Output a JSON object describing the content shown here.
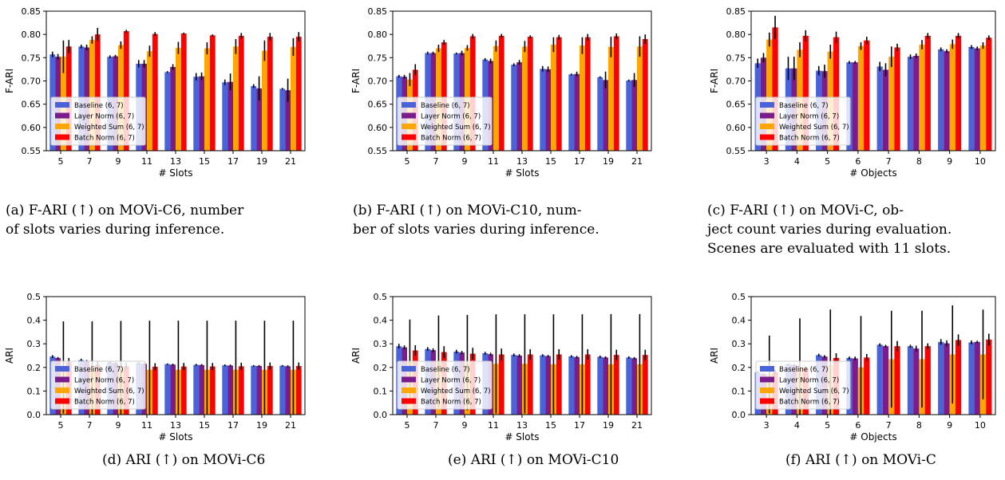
{
  "legend_entries": [
    "Baseline (6, 7)",
    "Layer Norm (6, 7)",
    "Weighted Sum (6, 7)",
    "Batch Norm (6, 7)"
  ],
  "colors": {
    "baseline": "#4a63d9",
    "layer_norm": "#7a1c8c",
    "weighted_sum": "#ffa500",
    "batch_norm": "#ff0000",
    "error": "#000000"
  },
  "chart_data": [
    {
      "type": "bar",
      "caption": [
        "(a) F-ARI (↑) on MOVi-C6, number",
        "of slots varies during inference."
      ],
      "xlabel": "# Slots",
      "ylabel": "F-ARI",
      "ylim": [
        0.55,
        0.85
      ],
      "yticks": [
        0.55,
        0.6,
        0.65,
        0.7,
        0.75,
        0.8,
        0.85
      ],
      "ytick_decimals": 2,
      "categories": [
        "5",
        "7",
        "9",
        "11",
        "13",
        "15",
        "17",
        "19",
        "21"
      ],
      "legend": "lower-left",
      "series": [
        {
          "name": "Baseline (6, 7)",
          "values": [
            0.757,
            0.774,
            0.752,
            0.737,
            0.719,
            0.709,
            0.697,
            0.689,
            0.683
          ],
          "err": [
            0.006,
            0.004,
            0.003,
            0.008,
            0.002,
            0.008,
            0.006,
            0.004,
            0.002
          ]
        },
        {
          "name": "Layer Norm (6, 7)",
          "values": [
            0.752,
            0.772,
            0.753,
            0.737,
            0.73,
            0.71,
            0.698,
            0.684,
            0.68
          ],
          "err": [
            0.006,
            0.006,
            0.003,
            0.008,
            0.006,
            0.008,
            0.018,
            0.026,
            0.025
          ]
        },
        {
          "name": "Weighted Sum (6, 7)",
          "values": [
            0.752,
            0.788,
            0.777,
            0.764,
            0.771,
            0.77,
            0.774,
            0.765,
            0.773
          ],
          "err": [
            0.035,
            0.008,
            0.008,
            0.012,
            0.013,
            0.013,
            0.016,
            0.022,
            0.019
          ]
        },
        {
          "name": "Batch Norm (6, 7)",
          "values": [
            0.774,
            0.8,
            0.807,
            0.801,
            0.802,
            0.798,
            0.797,
            0.795,
            0.795
          ],
          "err": [
            0.014,
            0.014,
            0.003,
            0.004,
            0.002,
            0.002,
            0.006,
            0.008,
            0.01
          ]
        }
      ]
    },
    {
      "type": "bar",
      "caption": [
        "(b) F-ARI (↑) on MOVi-C10, num-",
        "ber of slots varies during inference."
      ],
      "xlabel": "# Slots",
      "ylabel": "F-ARI",
      "ylim": [
        0.55,
        0.85
      ],
      "yticks": [
        0.55,
        0.6,
        0.65,
        0.7,
        0.75,
        0.8,
        0.85
      ],
      "ytick_decimals": 2,
      "categories": [
        "5",
        "7",
        "9",
        "11",
        "13",
        "15",
        "17",
        "19",
        "21"
      ],
      "legend": "lower-left",
      "series": [
        {
          "name": "Baseline (6, 7)",
          "values": [
            0.71,
            0.76,
            0.759,
            0.746,
            0.735,
            0.726,
            0.714,
            0.708,
            0.701
          ],
          "err": [
            0.003,
            0.003,
            0.002,
            0.003,
            0.003,
            0.006,
            0.002,
            0.002,
            0.002
          ]
        },
        {
          "name": "Layer Norm (6, 7)",
          "values": [
            0.709,
            0.76,
            0.76,
            0.743,
            0.74,
            0.725,
            0.715,
            0.702,
            0.702
          ],
          "err": [
            0.004,
            0.003,
            0.005,
            0.005,
            0.005,
            0.006,
            0.005,
            0.018,
            0.015
          ]
        },
        {
          "name": "Weighted Sum (6, 7)",
          "values": [
            0.703,
            0.77,
            0.771,
            0.775,
            0.774,
            0.778,
            0.776,
            0.773,
            0.774
          ],
          "err": [
            0.014,
            0.008,
            0.006,
            0.012,
            0.012,
            0.016,
            0.018,
            0.022,
            0.022
          ]
        },
        {
          "name": "Batch Norm (6, 7)",
          "values": [
            0.724,
            0.783,
            0.796,
            0.797,
            0.795,
            0.794,
            0.794,
            0.796,
            0.79
          ],
          "err": [
            0.012,
            0.005,
            0.005,
            0.004,
            0.003,
            0.005,
            0.007,
            0.006,
            0.01
          ]
        }
      ]
    },
    {
      "type": "bar",
      "caption": [
        "(c)  F-ARI  (↑)  on  MOVi-C,  ob-",
        "ject count varies during evaluation.",
        "Scenes are evaluated with 11 slots."
      ],
      "xlabel": "# Objects",
      "ylabel": "F-ARI",
      "ylim": [
        0.55,
        0.85
      ],
      "yticks": [
        0.55,
        0.6,
        0.65,
        0.7,
        0.75,
        0.8,
        0.85
      ],
      "ytick_decimals": 2,
      "categories": [
        "3",
        "4",
        "5",
        "6",
        "7",
        "8",
        "9",
        "10"
      ],
      "legend": "lower-left",
      "series": [
        {
          "name": "Baseline (6, 7)",
          "values": [
            0.738,
            0.727,
            0.722,
            0.74,
            0.731,
            0.752,
            0.768,
            0.773
          ],
          "err": [
            0.01,
            0.025,
            0.01,
            0.003,
            0.01,
            0.005,
            0.004,
            0.004
          ]
        },
        {
          "name": "Layer Norm (6, 7)",
          "values": [
            0.75,
            0.727,
            0.721,
            0.74,
            0.724,
            0.754,
            0.764,
            0.77
          ],
          "err": [
            0.01,
            0.025,
            0.014,
            0.003,
            0.014,
            0.005,
            0.004,
            0.004
          ]
        },
        {
          "name": "Weighted Sum (6, 7)",
          "values": [
            0.789,
            0.767,
            0.763,
            0.775,
            0.752,
            0.778,
            0.779,
            0.776
          ],
          "err": [
            0.015,
            0.016,
            0.015,
            0.008,
            0.022,
            0.01,
            0.01,
            0.007
          ]
        },
        {
          "name": "Batch Norm (6, 7)",
          "values": [
            0.815,
            0.797,
            0.794,
            0.787,
            0.772,
            0.797,
            0.797,
            0.793
          ],
          "err": [
            0.025,
            0.012,
            0.012,
            0.008,
            0.008,
            0.006,
            0.006,
            0.005
          ]
        }
      ]
    },
    {
      "type": "bar",
      "caption": [
        "(d) ARI (↑) on MOVi-C6"
      ],
      "xlabel": "# Slots",
      "ylabel": "ARI",
      "ylim": [
        0.0,
        0.5
      ],
      "yticks": [
        0.0,
        0.1,
        0.2,
        0.3,
        0.4,
        0.5
      ],
      "ytick_decimals": 1,
      "categories": [
        "5",
        "7",
        "9",
        "11",
        "13",
        "15",
        "17",
        "19",
        "21"
      ],
      "legend": "lower-left",
      "series": [
        {
          "name": "Baseline (6, 7)",
          "values": [
            0.246,
            0.231,
            0.222,
            0.218,
            0.214,
            0.211,
            0.209,
            0.207,
            0.207
          ],
          "err": [
            0.006,
            0.006,
            0.005,
            0.005,
            0.003,
            0.004,
            0.004,
            0.003,
            0.003
          ]
        },
        {
          "name": "Layer Norm (6, 7)",
          "values": [
            0.24,
            0.227,
            0.218,
            0.215,
            0.212,
            0.21,
            0.208,
            0.206,
            0.205
          ],
          "err": [
            0.004,
            0.004,
            0.004,
            0.004,
            0.004,
            0.004,
            0.004,
            0.004,
            0.004
          ]
        },
        {
          "name": "Weighted Sum (6, 7)",
          "values": [
            0.2,
            0.195,
            0.192,
            0.19,
            0.19,
            0.19,
            0.19,
            0.19,
            0.19
          ],
          "err": [
            0.195,
            0.2,
            0.205,
            0.208,
            0.208,
            0.208,
            0.208,
            0.208,
            0.208
          ]
        },
        {
          "name": "Batch Norm (6, 7)",
          "values": [
            0.222,
            0.21,
            0.205,
            0.203,
            0.204,
            0.204,
            0.205,
            0.206,
            0.206
          ],
          "err": [
            0.018,
            0.018,
            0.015,
            0.015,
            0.015,
            0.015,
            0.015,
            0.015,
            0.015
          ]
        }
      ]
    },
    {
      "type": "bar",
      "caption": [
        "(e) ARI (↑) on MOVi-C10"
      ],
      "xlabel": "# Slots",
      "ylabel": "ARI",
      "ylim": [
        0.0,
        0.5
      ],
      "yticks": [
        0.0,
        0.1,
        0.2,
        0.3,
        0.4,
        0.5
      ],
      "ytick_decimals": 1,
      "categories": [
        "5",
        "7",
        "9",
        "11",
        "13",
        "15",
        "17",
        "19",
        "21"
      ],
      "legend": "lower-left",
      "series": [
        {
          "name": "Baseline (6, 7)",
          "values": [
            0.29,
            0.278,
            0.267,
            0.26,
            0.253,
            0.251,
            0.247,
            0.245,
            0.242
          ],
          "err": [
            0.01,
            0.008,
            0.008,
            0.006,
            0.006,
            0.005,
            0.005,
            0.005,
            0.005
          ]
        },
        {
          "name": "Layer Norm (6, 7)",
          "values": [
            0.285,
            0.273,
            0.263,
            0.256,
            0.25,
            0.248,
            0.244,
            0.242,
            0.239
          ],
          "err": [
            0.008,
            0.008,
            0.007,
            0.006,
            0.006,
            0.005,
            0.005,
            0.005,
            0.005
          ]
        },
        {
          "name": "Weighted Sum (6, 7)",
          "values": [
            0.225,
            0.225,
            0.22,
            0.215,
            0.215,
            0.213,
            0.213,
            0.213,
            0.213
          ],
          "err": [
            0.178,
            0.195,
            0.202,
            0.21,
            0.21,
            0.212,
            0.212,
            0.213,
            0.213
          ]
        },
        {
          "name": "Batch Norm (6, 7)",
          "values": [
            0.272,
            0.265,
            0.258,
            0.255,
            0.255,
            0.255,
            0.255,
            0.253,
            0.253
          ],
          "err": [
            0.022,
            0.025,
            0.025,
            0.025,
            0.022,
            0.022,
            0.022,
            0.022,
            0.022
          ]
        }
      ]
    },
    {
      "type": "bar",
      "caption": [
        "(f) ARI (↑) on MOVi-C"
      ],
      "xlabel": "# Objects",
      "ylabel": "ARI",
      "ylim": [
        0.0,
        0.5
      ],
      "yticks": [
        0.0,
        0.1,
        0.2,
        0.3,
        0.4,
        0.5
      ],
      "ytick_decimals": 1,
      "categories": [
        "3",
        "4",
        "5",
        "6",
        "7",
        "8",
        "9",
        "10"
      ],
      "legend": "lower-left",
      "series": [
        {
          "name": "Baseline (6, 7)",
          "values": [
            0.18,
            0.213,
            0.252,
            0.24,
            0.296,
            0.29,
            0.308,
            0.306
          ],
          "err": [
            0.004,
            0.004,
            0.006,
            0.006,
            0.006,
            0.006,
            0.012,
            0.008
          ]
        },
        {
          "name": "Layer Norm (6, 7)",
          "values": [
            0.172,
            0.21,
            0.246,
            0.238,
            0.29,
            0.28,
            0.302,
            0.308
          ],
          "err": [
            0.004,
            0.004,
            0.006,
            0.008,
            0.006,
            0.012,
            0.012,
            0.005
          ]
        },
        {
          "name": "Weighted Sum (6, 7)",
          "values": [
            0.17,
            0.2,
            0.21,
            0.2,
            0.235,
            0.235,
            0.255,
            0.255
          ],
          "err": [
            0.165,
            0.208,
            0.235,
            0.218,
            0.205,
            0.205,
            0.208,
            0.19
          ]
        },
        {
          "name": "Batch Norm (6, 7)",
          "values": [
            0.18,
            0.198,
            0.24,
            0.242,
            0.29,
            0.29,
            0.316,
            0.318
          ],
          "err": [
            0.01,
            0.008,
            0.02,
            0.015,
            0.022,
            0.012,
            0.024,
            0.025
          ]
        }
      ]
    }
  ]
}
